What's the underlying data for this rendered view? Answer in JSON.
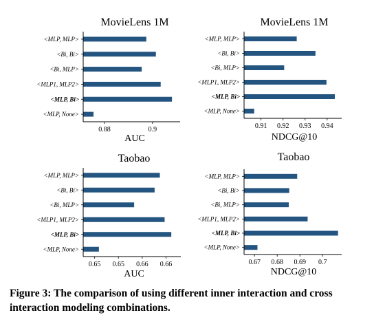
{
  "chart_data": [
    {
      "type": "bar",
      "orientation": "horizontal",
      "title": "MovieLens 1M",
      "xlabel": "AUC",
      "categories": [
        "<MLP, MLP>",
        "<Bi, Bi>",
        "<Bi, MLP>",
        "<MLP1, MLP2>",
        "<MLP, Bi>",
        "<MLP, None>"
      ],
      "highlight": "<MLP, Bi>",
      "values": [
        0.8974,
        0.9014,
        0.8955,
        0.9034,
        0.9081,
        0.8754
      ],
      "xlim": [
        0.8711,
        0.9115
      ],
      "xticks": [
        0.88,
        0.9
      ],
      "xtick_labels": [
        "0.88",
        "0.9"
      ],
      "grid": false
    },
    {
      "type": "bar",
      "orientation": "horizontal",
      "title": "MovieLens 1M",
      "xlabel": "NDCG@10",
      "categories": [
        "<MLP, MLP>",
        "<Bi, Bi>",
        "<Bi, MLP>",
        "<MLP1, MLP2>",
        "<MLP, Bi>",
        "<MLP, None>"
      ],
      "highlight": "<MLP, Bi>",
      "values": [
        0.9262,
        0.9347,
        0.9205,
        0.9397,
        0.9435,
        0.9069
      ],
      "xlim": [
        0.9023,
        0.9466
      ],
      "xticks": [
        0.91,
        0.92,
        0.93,
        0.94
      ],
      "xtick_labels": [
        "0.91",
        "0.92",
        "0.93",
        "0.94"
      ],
      "grid": false
    },
    {
      "type": "bar",
      "orientation": "horizontal",
      "title": "Taobao",
      "xlabel": "AUC",
      "categories": [
        "<MLP, MLP>",
        "<Bi, Bi>",
        "<Bi, MLP>",
        "<MLP1, MLP2>",
        "<MLP, Bi>",
        "<MLP, None>"
      ],
      "highlight": "<MLP, Bi>",
      "values": [
        0.6637,
        0.6626,
        0.6583,
        0.6647,
        0.6661,
        0.6509
      ],
      "xlim": [
        0.6476,
        0.6681
      ],
      "xticks": [
        0.65,
        0.655,
        0.66,
        0.665
      ],
      "xtick_labels": [
        "0.65",
        "0.65",
        "0.66",
        "0.66"
      ],
      "grid": false
    },
    {
      "type": "bar",
      "orientation": "horizontal",
      "title": "Taobao",
      "xlabel": "NDCG@10",
      "categories": [
        "<MLP, MLP>",
        "<Bi, Bi>",
        "<Bi, MLP>",
        "<MLP1, MLP2>",
        "<MLP, Bi>",
        "<MLP, None>"
      ],
      "highlight": "<MLP, Bi>",
      "values": [
        0.6888,
        0.6853,
        0.6851,
        0.6934,
        0.7068,
        0.6713
      ],
      "xlim": [
        0.6654,
        0.7084
      ],
      "xticks": [
        0.67,
        0.68,
        0.69,
        0.7
      ],
      "xtick_labels": [
        "0.67",
        "0.68",
        "0.69",
        "0.7"
      ],
      "grid": false
    }
  ],
  "colors": {
    "bar": "#245580",
    "axis": "#000000"
  },
  "caption": "Figure 3: The comparison of using different inner interaction and cross interaction modeling combinations."
}
